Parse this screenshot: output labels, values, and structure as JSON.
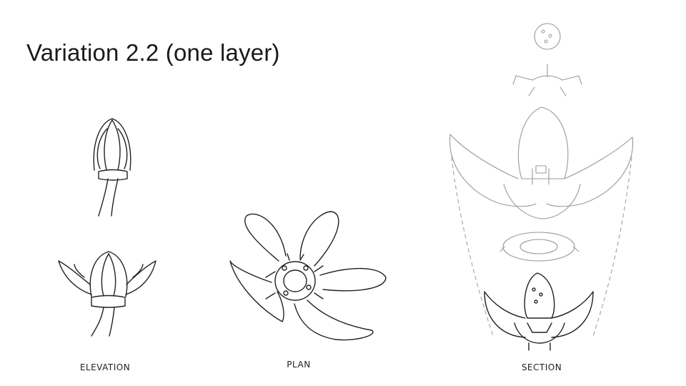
{
  "slide": {
    "title": "Variation 2.2 (one layer)",
    "labels": {
      "elevation": "ELEVATION",
      "plan": "PLAN",
      "section": "SECTION"
    }
  }
}
